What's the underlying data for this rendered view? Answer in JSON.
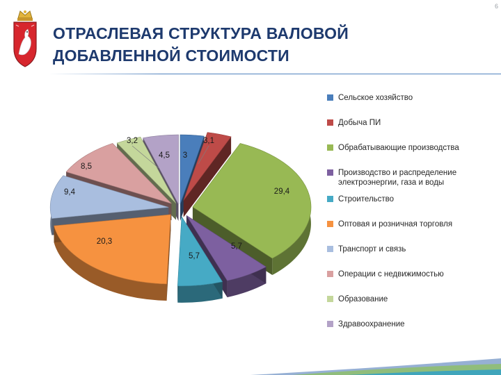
{
  "page_number": "6",
  "header": {
    "title_line1": "ОТРАСЛЕВАЯ СТРУКТУРА ВАЛОВОЙ",
    "title_line2": "ДОБАВЛЕННОЙ СТОИМОСТИ"
  },
  "logo": {
    "name": "coat-of-arms-icon"
  },
  "colors": {
    "title": "#1E3A6E",
    "rule": "#4F81BD"
  },
  "chart_data": {
    "type": "pie",
    "style": "3d-exploded",
    "legend_position": "right",
    "series": [
      {
        "values": [
          3,
          3.1,
          29.4,
          5.7,
          5.7,
          20.3,
          9.4,
          8.5,
          3.2,
          4.5
        ]
      }
    ],
    "slices": [
      {
        "label": "Сельское хозяйство",
        "value": 3,
        "value_label": "3",
        "color": "#4A7EBB"
      },
      {
        "label": "Добыча ПИ",
        "value": 3.1,
        "value_label": "3,1",
        "color": "#BE4B48"
      },
      {
        "label": "Обрабатывающие производства",
        "value": 29.4,
        "value_label": "29,4",
        "color": "#98B954"
      },
      {
        "label": "Производство и распределение электроэнергии, газа и воды",
        "value": 5.7,
        "value_label": "5,7",
        "color": "#7D60A0"
      },
      {
        "label": "Строительство",
        "value": 5.7,
        "value_label": "5,7",
        "color": "#46AAC5"
      },
      {
        "label": "Оптовая и розничная торговля",
        "value": 20.3,
        "value_label": "20,3",
        "color": "#F69240"
      },
      {
        "label": "Транспорт и связь",
        "value": 9.4,
        "value_label": "9,4",
        "color": "#A9BEDF"
      },
      {
        "label": "Операции с недвижимостью",
        "value": 8.5,
        "value_label": "8,5",
        "color": "#D9A0A0"
      },
      {
        "label": "Образование",
        "value": 3.2,
        "value_label": "3,2",
        "color": "#C4D79B"
      },
      {
        "label": "Здравоохранение",
        "value": 4.5,
        "value_label": "4,5",
        "color": "#B3A2C7"
      }
    ]
  }
}
